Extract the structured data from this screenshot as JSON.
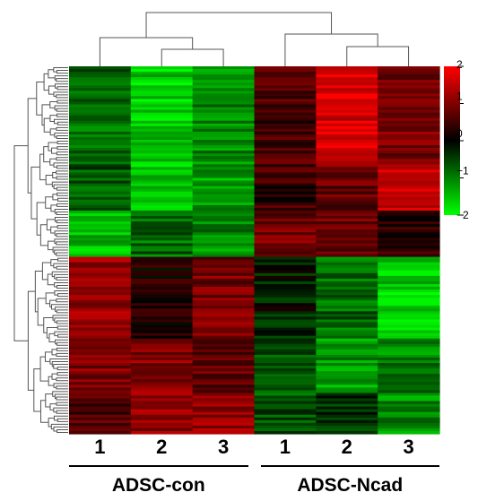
{
  "chart_data": {
    "type": "heatmap",
    "title": "",
    "columns": [
      "1",
      "2",
      "3",
      "1",
      "2",
      "3"
    ],
    "groups": [
      {
        "label": "ADSC-con",
        "columns": [
          0,
          1,
          2
        ]
      },
      {
        "label": "ADSC-Ncad",
        "columns": [
          3,
          4,
          5
        ]
      }
    ],
    "colorbar": {
      "min": -2,
      "max": 2,
      "ticks": [
        2,
        1,
        0,
        -1,
        -2
      ],
      "tick_labels": [
        "2",
        "1",
        "0",
        "−1",
        "−2"
      ],
      "low_color": "#00ff00",
      "mid_color": "#000000",
      "high_color": "#ff0000"
    },
    "row_dendrogram": true,
    "column_dendrogram": true,
    "rows_approx": 135,
    "value_blocks": [
      {
        "rows": 36,
        "values": [
          -0.8,
          -1.6,
          -1.1,
          0.5,
          1.7,
          1.0
        ]
      },
      {
        "rows": 17,
        "values": [
          -0.7,
          -1.5,
          -1.2,
          0.4,
          0.8,
          1.7
        ]
      },
      {
        "rows": 17,
        "values": [
          -1.5,
          -0.8,
          -1.1,
          0.9,
          0.8,
          0.3
        ]
      },
      {
        "rows": 30,
        "values": [
          1.2,
          0.2,
          0.9,
          -0.2,
          -0.8,
          -1.6
        ]
      },
      {
        "rows": 20,
        "values": [
          1.0,
          1.0,
          0.7,
          -0.6,
          -1.2,
          -1.0
        ]
      },
      {
        "rows": 15,
        "values": [
          0.6,
          1.1,
          1.2,
          -0.7,
          -0.5,
          -1.1
        ]
      }
    ]
  }
}
